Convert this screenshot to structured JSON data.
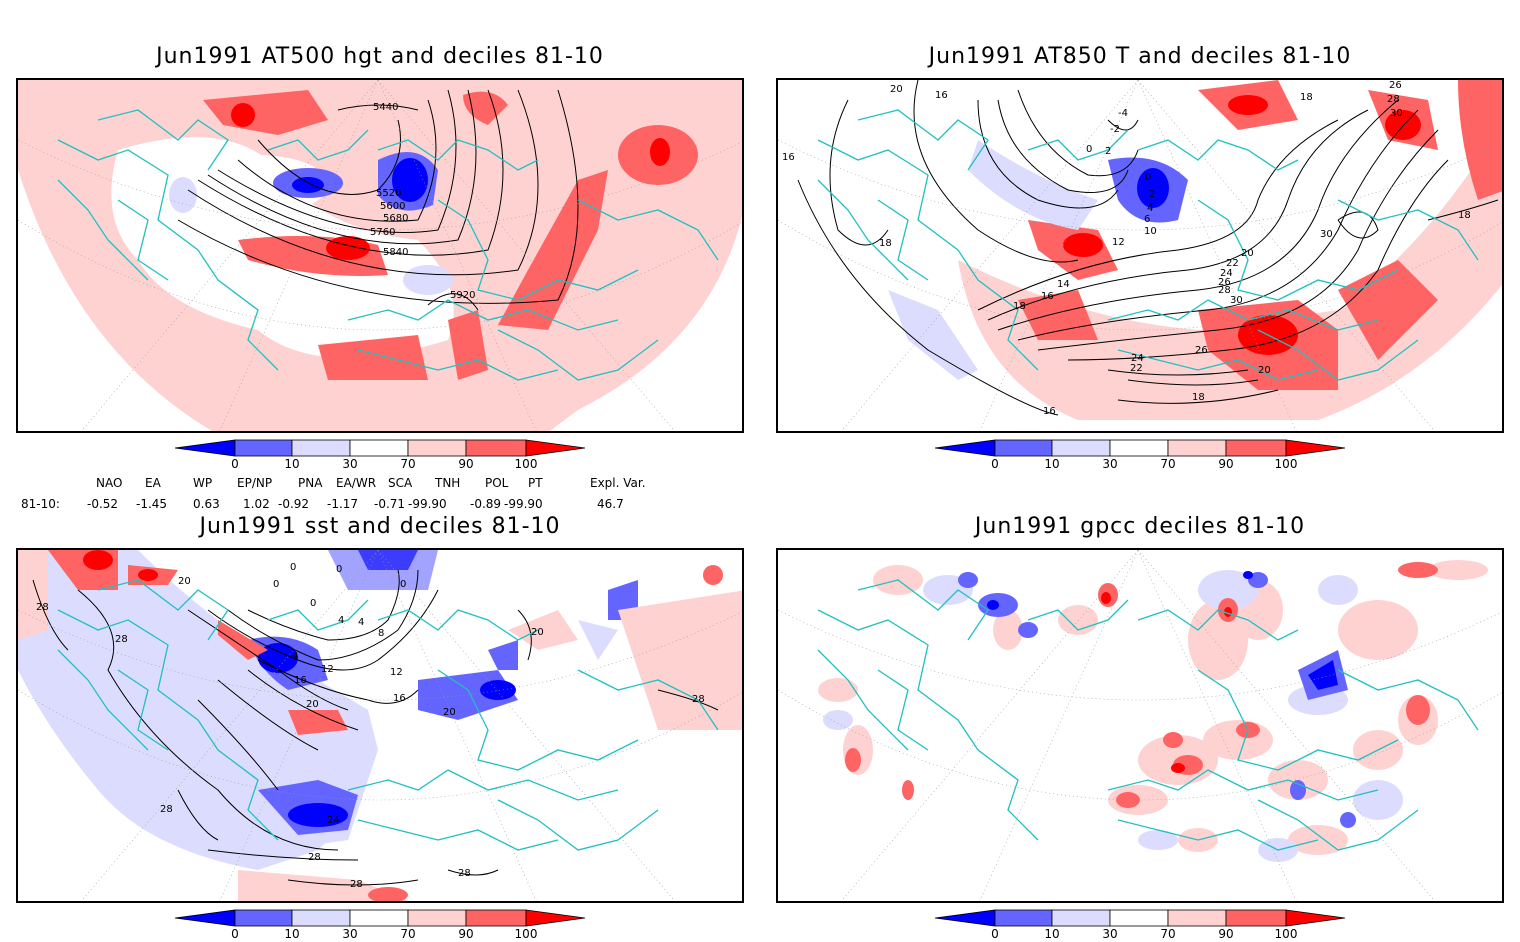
{
  "panels": [
    {
      "title": "Jun1991 AT500 hgt and deciles 81-10",
      "contour_labels": [
        "5440",
        "5520",
        "5600",
        "5680",
        "5760",
        "5840",
        "5920"
      ]
    },
    {
      "title": "Jun1991 AT850 T and deciles 81-10",
      "contour_labels": [
        "20",
        "16",
        "16",
        "-4",
        "-2",
        "0",
        "2",
        "0",
        "2",
        "4",
        "6",
        "10",
        "12",
        "14",
        "16",
        "18",
        "18",
        "20",
        "22",
        "24",
        "26",
        "28",
        "30",
        "26",
        "24",
        "22",
        "18",
        "20",
        "16",
        "18",
        "30",
        "28",
        "26",
        "18",
        "30"
      ]
    },
    {
      "title": "Jun1991 sst and deciles 81-10",
      "contour_labels": [
        "28",
        "28",
        "0",
        "0",
        "0",
        "0",
        "0",
        "4",
        "4",
        "8",
        "4",
        "12",
        "16",
        "20",
        "24",
        "12",
        "16",
        "20",
        "20",
        "20",
        "28",
        "28",
        "28",
        "28",
        "28"
      ]
    },
    {
      "title": "Jun1991 gpcc deciles 81-10",
      "contour_labels": []
    }
  ],
  "colorbar": {
    "ticks": [
      "0",
      "10",
      "30",
      "70",
      "90",
      "100"
    ],
    "colors": [
      "#0000ff",
      "#6464ff",
      "#dcdcff",
      "#ffffff",
      "#ffd2d2",
      "#ff6464",
      "#ff0000"
    ]
  },
  "indices": {
    "headers": [
      "NAO",
      "EA",
      "WP",
      "EP/NP",
      "PNA",
      "EA/WR",
      "SCA",
      "TNH",
      "POL",
      "PT",
      "Expl. Var."
    ],
    "row_label": "81-10:",
    "values": [
      "-0.52",
      "-1.45",
      "0.63",
      "1.02",
      "-0.92",
      "-1.17",
      "-0.71",
      "-99.90",
      "-0.89",
      "-99.90",
      "46.7"
    ]
  }
}
